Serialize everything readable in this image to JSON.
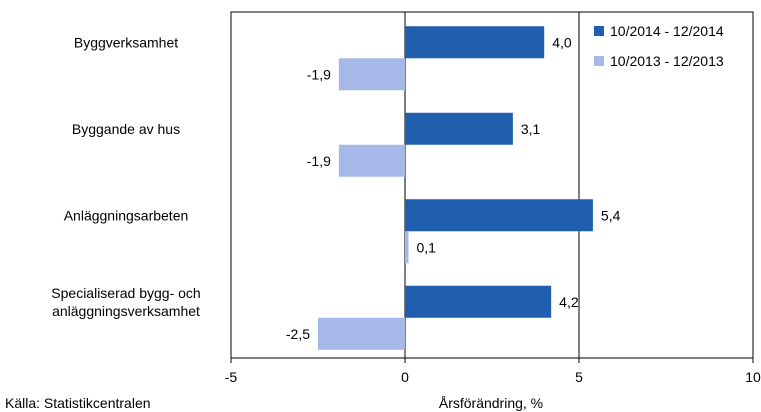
{
  "chart_data": {
    "type": "bar",
    "orientation": "horizontal",
    "categories": [
      "Byggverksamhet",
      "Byggande av hus",
      "Anläggningsarbeten",
      "Specialiserad bygg- och anläggningsverksamhet"
    ],
    "category_lines": [
      [
        "Byggverksamhet"
      ],
      [
        "Byggande av hus"
      ],
      [
        "Anläggningsarbeten"
      ],
      [
        "Specialiserad bygg- och",
        "anläggningsverksamhet"
      ]
    ],
    "series": [
      {
        "name": "10/2014 - 12/2014",
        "color": "#1f5fad",
        "values": [
          4.0,
          3.1,
          5.4,
          4.2
        ],
        "labels": [
          "4,0",
          "3,1",
          "5,4",
          "4,2"
        ]
      },
      {
        "name": "10/2013 - 12/2013",
        "color": "#a6b8e8",
        "values": [
          -1.9,
          -1.9,
          0.1,
          -2.5
        ],
        "labels": [
          "-1,9",
          "-1,9",
          "0,1",
          "-2,5"
        ]
      }
    ],
    "xlim": [
      -5,
      10
    ],
    "xticks": [
      -5,
      0,
      5,
      10
    ],
    "xtick_labels": [
      "-5",
      "0",
      "5",
      "10"
    ],
    "xlabel": "Årsförändring, %",
    "grid": "vertical lines at 0 and 5",
    "legend": "top-right"
  },
  "source": "Källa: Statistikcentralen"
}
